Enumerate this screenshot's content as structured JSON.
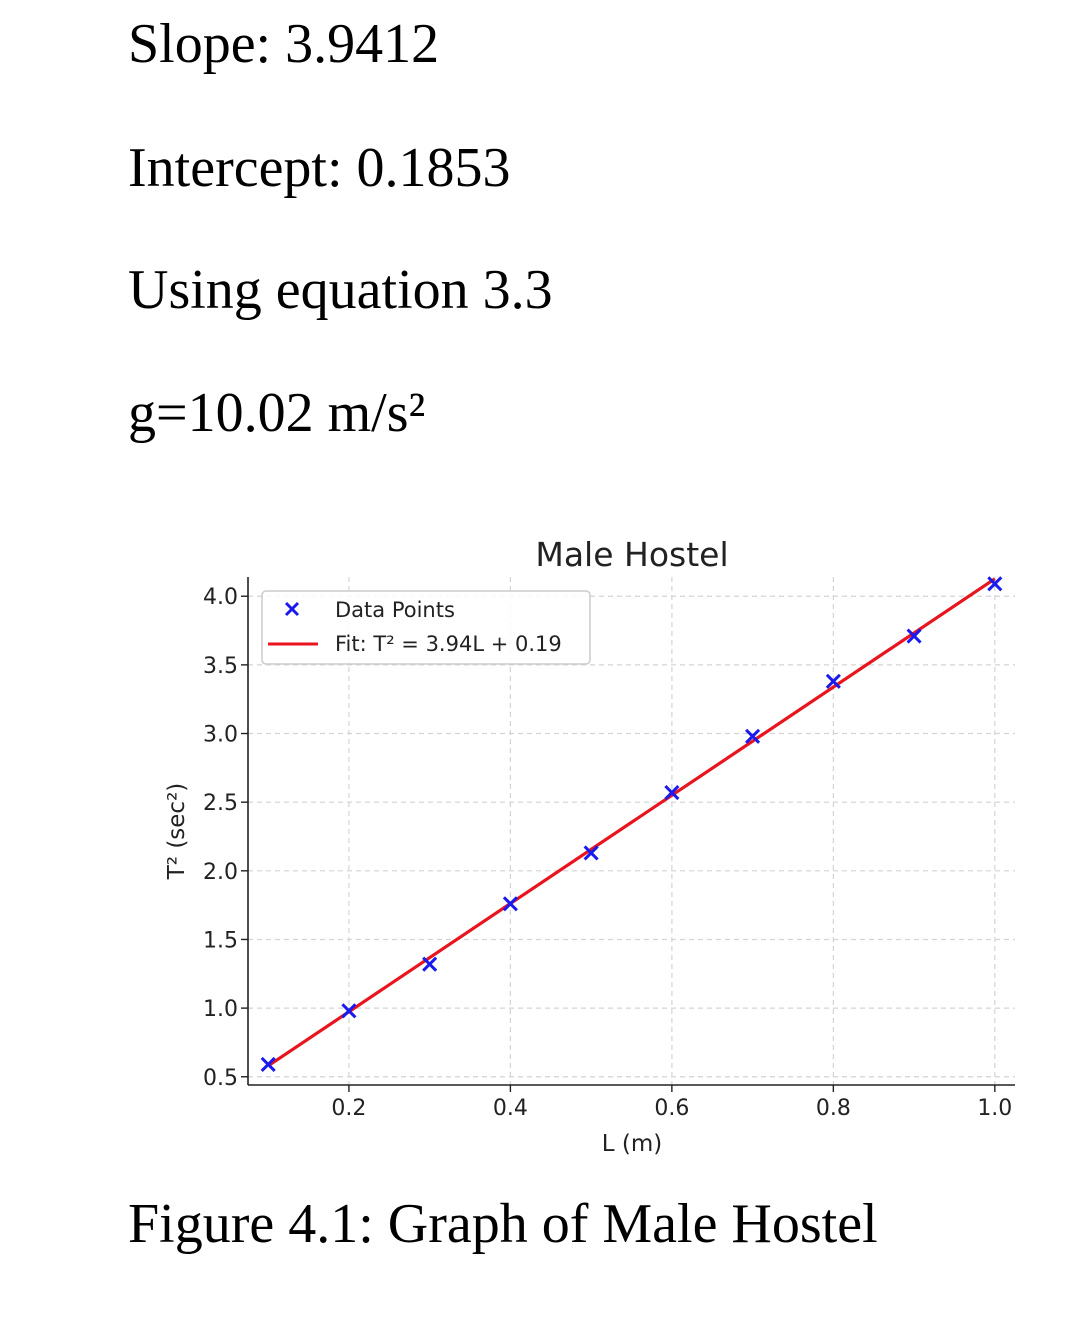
{
  "text": {
    "slope": "Slope: 3.9412",
    "intercept": "Intercept: 0.1853",
    "equation": "Using equation 3.3",
    "g_value": "g=10.02 m/s²",
    "caption": "Figure 4.1: Graph of Male Hostel"
  },
  "chart_data": {
    "type": "scatter",
    "title": "Male Hostel",
    "xlabel": "L (m)",
    "ylabel": "T² (sec²)",
    "xlim": [
      0.075,
      1.025
    ],
    "ylim": [
      0.44,
      4.14
    ],
    "xticks": [
      0.2,
      0.4,
      0.6,
      0.8,
      1.0
    ],
    "yticks": [
      0.5,
      1.0,
      1.5,
      2.0,
      2.5,
      3.0,
      3.5,
      4.0
    ],
    "grid": true,
    "legend_position": "top-left",
    "series": [
      {
        "name": "Data Points",
        "marker": "x",
        "color": "#1a1aee",
        "x": [
          0.1,
          0.2,
          0.3,
          0.4,
          0.5,
          0.6,
          0.7,
          0.8,
          0.9,
          1.0
        ],
        "y": [
          0.59,
          0.98,
          1.32,
          1.76,
          2.13,
          2.57,
          2.98,
          3.38,
          3.71,
          4.09
        ]
      },
      {
        "name": "Fit: T² = 3.94L + 0.19",
        "type": "line",
        "color": "#e8141e",
        "slope": 3.9412,
        "intercept": 0.1853
      }
    ]
  }
}
